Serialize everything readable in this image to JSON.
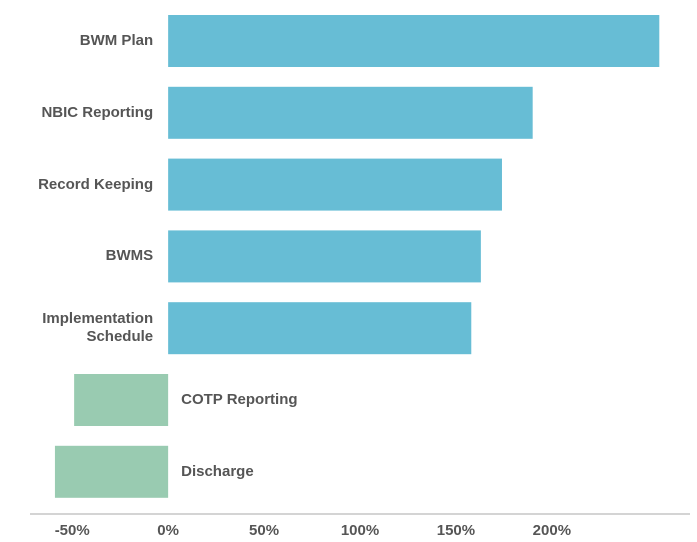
{
  "chart_data": {
    "type": "bar",
    "orientation": "horizontal",
    "categories": [
      "BWM Plan",
      "NBIC Reporting",
      "Record Keeping",
      "BWMS",
      "Implementation Schedule",
      "COTP Reporting",
      "Discharge"
    ],
    "values": [
      256,
      190,
      174,
      163,
      158,
      -49,
      -59
    ],
    "colors": [
      "#67bdd5",
      "#67bdd5",
      "#67bdd5",
      "#67bdd5",
      "#67bdd5",
      "#99cbb1",
      "#99cbb1"
    ],
    "xlim": [
      -72,
      272
    ],
    "xticks": [
      {
        "value": -50,
        "label": "-50%"
      },
      {
        "value": 0,
        "label": "0%"
      },
      {
        "value": 50,
        "label": "50%"
      },
      {
        "value": 100,
        "label": "100%"
      },
      {
        "value": 150,
        "label": "150%"
      },
      {
        "value": 200,
        "label": "200%"
      }
    ],
    "grid": false
  }
}
